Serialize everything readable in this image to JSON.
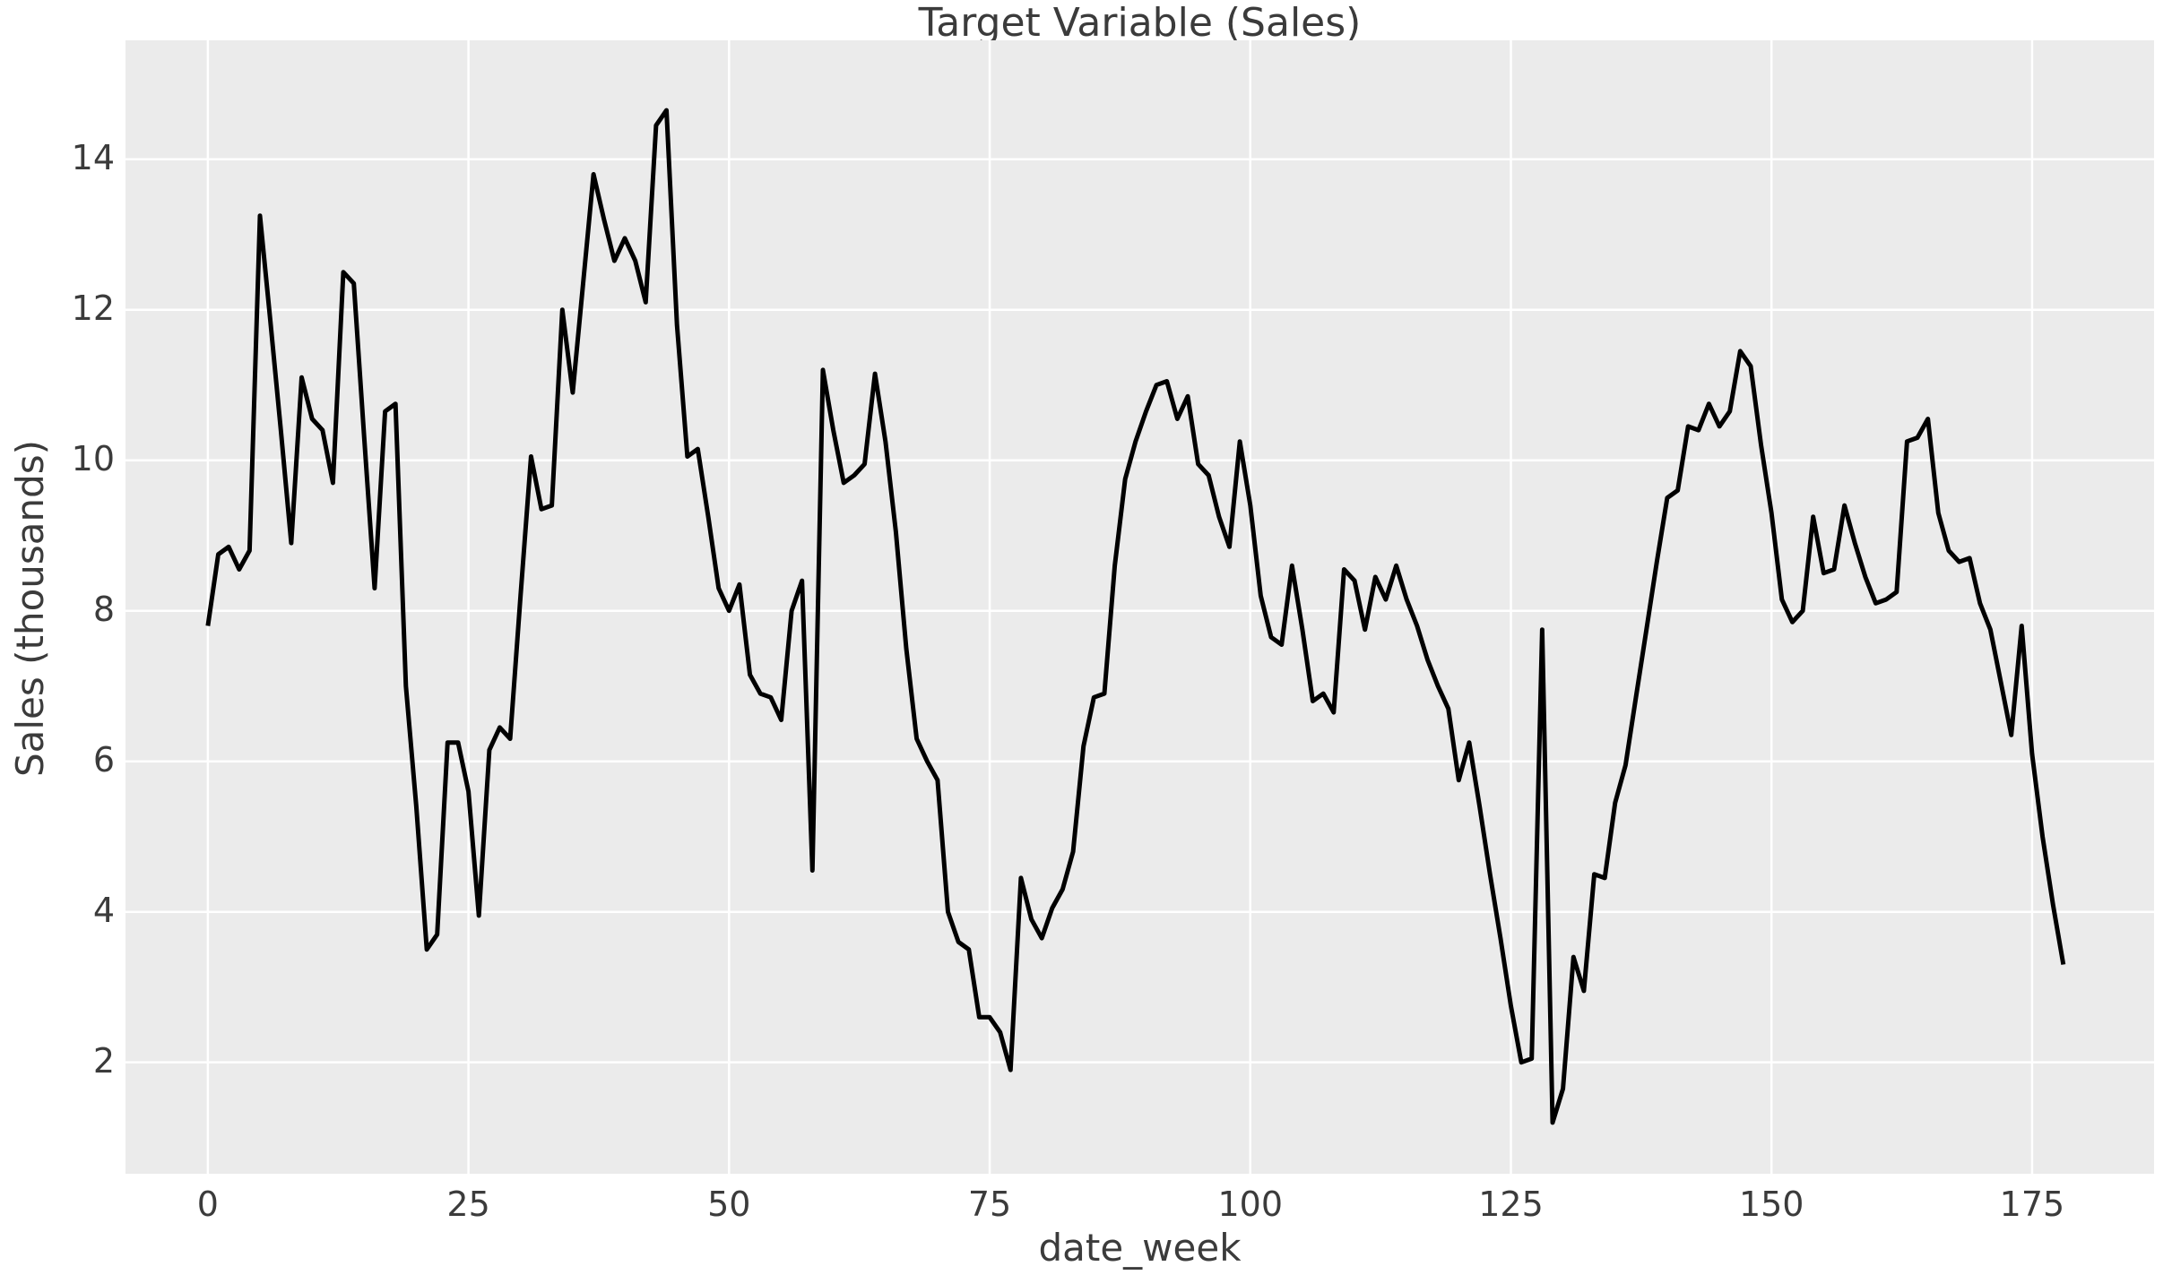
{
  "style": {
    "figure_bg": "#ffffff",
    "plot_bg": "#ebebeb",
    "grid_color": "#ffffff",
    "line_color": "#000000",
    "text_color": "#3b3b3b"
  },
  "chart_data": {
    "type": "line",
    "title": "Target Variable (Sales)",
    "xlabel": "date_week",
    "ylabel": "Sales (thousands)",
    "series_name": "Sales",
    "grid": true,
    "legend": false,
    "x_ticks": [
      0,
      25,
      50,
      75,
      100,
      125,
      150,
      175
    ],
    "y_ticks": [
      2,
      4,
      6,
      8,
      10,
      12,
      14
    ],
    "xlim": [
      -7.9,
      186.7
    ],
    "ylim": [
      0.52,
      15.58
    ],
    "x_start": 0,
    "x_step": 1,
    "values": [
      7.8,
      8.75,
      8.85,
      8.55,
      8.8,
      13.25,
      11.85,
      10.4,
      8.9,
      11.1,
      10.55,
      10.4,
      9.7,
      12.5,
      12.35,
      10.3,
      8.3,
      10.65,
      10.75,
      7.0,
      5.4,
      3.5,
      3.7,
      6.25,
      6.25,
      5.6,
      3.95,
      6.15,
      6.45,
      6.3,
      8.2,
      10.05,
      9.35,
      9.4,
      12.0,
      10.9,
      12.35,
      13.8,
      13.2,
      12.65,
      12.95,
      12.65,
      12.1,
      14.45,
      14.65,
      11.8,
      10.05,
      10.15,
      9.25,
      8.3,
      8.0,
      8.35,
      7.15,
      6.9,
      6.85,
      6.55,
      8.0,
      8.4,
      4.55,
      11.2,
      10.4,
      9.7,
      9.8,
      9.95,
      11.15,
      10.25,
      9.05,
      7.5,
      6.3,
      6.0,
      5.75,
      4.0,
      3.6,
      3.5,
      2.6,
      2.6,
      2.4,
      1.9,
      4.45,
      3.9,
      3.65,
      4.05,
      4.3,
      4.8,
      6.2,
      6.85,
      6.9,
      8.6,
      9.75,
      10.25,
      10.65,
      11.0,
      11.05,
      10.55,
      10.85,
      9.95,
      9.8,
      9.25,
      8.85,
      10.25,
      9.4,
      8.2,
      7.65,
      7.55,
      8.6,
      7.75,
      6.8,
      6.9,
      6.65,
      8.55,
      8.4,
      7.75,
      8.45,
      8.15,
      8.6,
      8.15,
      7.8,
      7.35,
      7.0,
      6.7,
      5.75,
      6.25,
      5.4,
      4.5,
      3.65,
      2.75,
      2.0,
      2.05,
      7.75,
      1.2,
      1.65,
      3.4,
      2.95,
      4.5,
      4.45,
      5.45,
      5.95,
      6.85,
      7.75,
      8.65,
      9.5,
      9.6,
      10.45,
      10.4,
      10.75,
      10.45,
      10.65,
      11.45,
      11.25,
      10.2,
      9.3,
      8.15,
      7.85,
      8.0,
      9.25,
      8.5,
      8.55,
      9.4,
      8.9,
      8.45,
      8.1,
      8.15,
      8.25,
      10.25,
      10.3,
      10.55,
      9.3,
      8.8,
      8.65,
      8.7,
      8.1,
      7.75,
      7.05,
      6.35,
      7.8,
      6.1,
      5.0,
      4.1,
      3.3
    ]
  }
}
